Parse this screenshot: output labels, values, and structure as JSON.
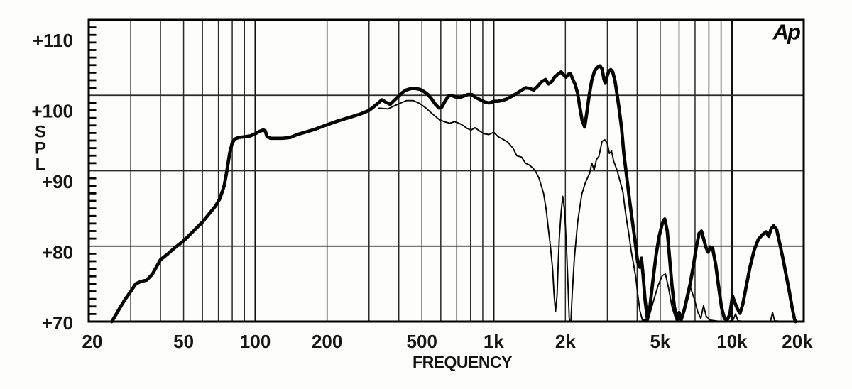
{
  "chart": {
    "logo_text": "Ap",
    "x_axis_title": "FREQUENCY",
    "y_axis_title_letters": [
      "S",
      "P",
      "L"
    ],
    "colors": {
      "background": "#fdfdfc",
      "border": "#000000",
      "grid_minor": "#2a2a2a",
      "grid_major": "#111111",
      "curve": "#050505",
      "text": "#161616"
    }
  },
  "chart_data": {
    "type": "line",
    "title": "",
    "xlabel": "FREQUENCY",
    "ylabel": "SPL",
    "x_scale": "log",
    "xlim": [
      20,
      20000
    ],
    "ylim": [
      70,
      110
    ],
    "grid": true,
    "x_ticks": [
      {
        "label": "20",
        "value": 20
      },
      {
        "label": "50",
        "value": 50
      },
      {
        "label": "100",
        "value": 100
      },
      {
        "label": "200",
        "value": 200
      },
      {
        "label": "500",
        "value": 500
      },
      {
        "label": "1k",
        "value": 1000
      },
      {
        "label": "2k",
        "value": 2000
      },
      {
        "label": "5k",
        "value": 5000
      },
      {
        "label": "10k",
        "value": 10000
      },
      {
        "label": "20k",
        "value": 20000
      }
    ],
    "y_ticks": [
      {
        "label": "+110",
        "value": 110
      },
      {
        "label": "+100",
        "value": 100
      },
      {
        "label": "+90",
        "value": 90
      },
      {
        "label": "+80",
        "value": 80
      },
      {
        "label": "+70",
        "value": 70
      }
    ],
    "y_minor_tick_step_db": 1,
    "x_gridlines_hz": [
      30,
      40,
      50,
      60,
      70,
      80,
      90,
      100,
      200,
      300,
      400,
      500,
      600,
      700,
      800,
      900,
      1000,
      2000,
      3000,
      4000,
      5000,
      6000,
      7000,
      8000,
      9000,
      10000
    ],
    "x_major_gridlines_hz": [
      100,
      1000,
      10000
    ],
    "y_gridlines_db": [
      100,
      90,
      80
    ],
    "series": [
      {
        "name": "thick-response-curve",
        "stroke_width": 4.7,
        "points": [
          [
            25,
            70
          ],
          [
            26,
            70.9
          ],
          [
            27,
            71.8
          ],
          [
            28.5,
            73
          ],
          [
            30,
            74
          ],
          [
            31.5,
            75
          ],
          [
            33,
            75.3
          ],
          [
            35,
            75.5
          ],
          [
            37,
            76.3
          ],
          [
            40,
            78.2
          ],
          [
            43,
            79
          ],
          [
            46,
            79.8
          ],
          [
            50,
            80.7
          ],
          [
            55,
            82
          ],
          [
            60,
            83.2
          ],
          [
            64,
            84.3
          ],
          [
            68,
            85.3
          ],
          [
            71,
            86.3
          ],
          [
            74,
            88
          ],
          [
            76,
            90
          ],
          [
            78,
            92.3
          ],
          [
            80,
            93.7
          ],
          [
            82,
            94.2
          ],
          [
            85,
            94.4
          ],
          [
            90,
            94.5
          ],
          [
            95,
            94.6
          ],
          [
            100,
            94.9
          ],
          [
            104,
            95.2
          ],
          [
            108,
            95.4
          ],
          [
            110,
            95.3
          ],
          [
            112,
            94.5
          ],
          [
            116,
            94.3
          ],
          [
            122,
            94.3
          ],
          [
            130,
            94.3
          ],
          [
            140,
            94.4
          ],
          [
            150,
            94.8
          ],
          [
            162,
            95.1
          ],
          [
            178,
            95.5
          ],
          [
            200,
            96.1
          ],
          [
            222,
            96.6
          ],
          [
            250,
            97.1
          ],
          [
            275,
            97.5
          ],
          [
            300,
            98
          ],
          [
            320,
            98.7
          ],
          [
            340,
            99.4
          ],
          [
            352,
            99.1
          ],
          [
            368,
            98.8
          ],
          [
            385,
            99.4
          ],
          [
            400,
            99.9
          ],
          [
            415,
            100.4
          ],
          [
            430,
            100.7
          ],
          [
            450,
            100.9
          ],
          [
            470,
            100.9
          ],
          [
            490,
            100.8
          ],
          [
            510,
            100.5
          ],
          [
            530,
            100.1
          ],
          [
            550,
            99.5
          ],
          [
            570,
            98.8
          ],
          [
            590,
            98.3
          ],
          [
            605,
            98.4
          ],
          [
            625,
            99.2
          ],
          [
            645,
            99.9
          ],
          [
            665,
            100
          ],
          [
            690,
            99.8
          ],
          [
            720,
            99.7
          ],
          [
            750,
            99.9
          ],
          [
            780,
            100.1
          ],
          [
            810,
            100.1
          ],
          [
            840,
            99.7
          ],
          [
            880,
            99.4
          ],
          [
            920,
            99.1
          ],
          [
            960,
            99
          ],
          [
            1000,
            99.2
          ],
          [
            1040,
            99.2
          ],
          [
            1080,
            99.3
          ],
          [
            1130,
            99.5
          ],
          [
            1180,
            99.8
          ],
          [
            1240,
            100.2
          ],
          [
            1300,
            100.6
          ],
          [
            1360,
            101
          ],
          [
            1420,
            100.9
          ],
          [
            1470,
            100.7
          ],
          [
            1520,
            101.1
          ],
          [
            1590,
            101.8
          ],
          [
            1650,
            102.1
          ],
          [
            1700,
            101.5
          ],
          [
            1750,
            101.8
          ],
          [
            1800,
            102.4
          ],
          [
            1860,
            102.8
          ],
          [
            1920,
            103.1
          ],
          [
            1970,
            102.7
          ],
          [
            2010,
            102.4
          ],
          [
            2060,
            102.8
          ],
          [
            2100,
            102.9
          ],
          [
            2150,
            102.1
          ],
          [
            2200,
            101.4
          ],
          [
            2250,
            100.3
          ],
          [
            2300,
            98.4
          ],
          [
            2350,
            96.7
          ],
          [
            2410,
            95.8
          ],
          [
            2460,
            97.7
          ],
          [
            2520,
            100.1
          ],
          [
            2580,
            102
          ],
          [
            2650,
            103.2
          ],
          [
            2720,
            103.7
          ],
          [
            2790,
            103.9
          ],
          [
            2850,
            103.5
          ],
          [
            2900,
            102.2
          ],
          [
            2940,
            101.6
          ],
          [
            2990,
            102.5
          ],
          [
            3040,
            103.2
          ],
          [
            3100,
            103.4
          ],
          [
            3160,
            103.1
          ],
          [
            3230,
            101.9
          ],
          [
            3300,
            100
          ],
          [
            3360,
            98.2
          ],
          [
            3440,
            95.7
          ],
          [
            3520,
            92.2
          ],
          [
            3620,
            89.1
          ],
          [
            3720,
            86
          ],
          [
            3820,
            83.3
          ],
          [
            3920,
            80.7
          ],
          [
            4020,
            77.9
          ],
          [
            4100,
            77.2
          ],
          [
            4170,
            78.4
          ],
          [
            4240,
            76
          ],
          [
            4320,
            72.8
          ],
          [
            4420,
            70.3
          ],
          [
            4520,
            71.8
          ],
          [
            4650,
            75.2
          ],
          [
            4800,
            78.8
          ],
          [
            4950,
            81.3
          ],
          [
            5100,
            83
          ],
          [
            5220,
            83.6
          ],
          [
            5350,
            82
          ],
          [
            5480,
            78.2
          ],
          [
            5600,
            74.8
          ],
          [
            5730,
            72
          ],
          [
            5880,
            70.3
          ],
          [
            6000,
            71.2
          ],
          [
            6130,
            70.3
          ],
          [
            6300,
            71.5
          ],
          [
            6480,
            73.2
          ],
          [
            6680,
            75
          ],
          [
            6880,
            77.3
          ],
          [
            7080,
            79.8
          ],
          [
            7280,
            81.7
          ],
          [
            7450,
            82
          ],
          [
            7600,
            81
          ],
          [
            7780,
            79.8
          ],
          [
            7950,
            79.2
          ],
          [
            8100,
            79.9
          ],
          [
            8300,
            79.7
          ],
          [
            8550,
            77.5
          ],
          [
            8800,
            74.5
          ],
          [
            9050,
            71.8
          ],
          [
            9300,
            70.4
          ],
          [
            9550,
            70.2
          ],
          [
            9800,
            71
          ],
          [
            10050,
            73.4
          ],
          [
            10250,
            72.6
          ],
          [
            10500,
            71.8
          ],
          [
            10800,
            71.1
          ],
          [
            11100,
            72.3
          ],
          [
            11500,
            74.8
          ],
          [
            11900,
            77.2
          ],
          [
            12400,
            79.5
          ],
          [
            12900,
            80.9
          ],
          [
            13400,
            81.5
          ],
          [
            13900,
            81.9
          ],
          [
            14250,
            81.3
          ],
          [
            14600,
            82.3
          ],
          [
            14950,
            82.7
          ],
          [
            15400,
            82.2
          ],
          [
            15900,
            80.2
          ],
          [
            16400,
            78.2
          ],
          [
            16900,
            76.1
          ],
          [
            17400,
            74
          ],
          [
            17900,
            71.8
          ],
          [
            18300,
            70.3
          ],
          [
            18500,
            70
          ]
        ]
      },
      {
        "name": "thin-response-curve",
        "stroke_width": 1.9,
        "points": [
          [
            330,
            98.3
          ],
          [
            360,
            98.2
          ],
          [
            395,
            98.8
          ],
          [
            430,
            99.3
          ],
          [
            460,
            99.3
          ],
          [
            490,
            98.9
          ],
          [
            520,
            98.3
          ],
          [
            555,
            97.5
          ],
          [
            590,
            96.8
          ],
          [
            620,
            96.5
          ],
          [
            655,
            96.3
          ],
          [
            685,
            96.5
          ],
          [
            715,
            96.3
          ],
          [
            745,
            96
          ],
          [
            775,
            95.6
          ],
          [
            805,
            95.4
          ],
          [
            835,
            95.7
          ],
          [
            870,
            95.3
          ],
          [
            910,
            94.9
          ],
          [
            955,
            94.8
          ],
          [
            1000,
            95.1
          ],
          [
            1045,
            94.5
          ],
          [
            1090,
            94.2
          ],
          [
            1145,
            93.8
          ],
          [
            1205,
            93
          ],
          [
            1250,
            92
          ],
          [
            1310,
            91.8
          ],
          [
            1360,
            91
          ],
          [
            1405,
            90.8
          ],
          [
            1455,
            90.4
          ],
          [
            1495,
            90
          ],
          [
            1550,
            89
          ],
          [
            1620,
            87
          ],
          [
            1660,
            84.9
          ],
          [
            1695,
            82.4
          ],
          [
            1730,
            80
          ],
          [
            1768,
            76.9
          ],
          [
            1792,
            73.7
          ],
          [
            1818,
            71.3
          ],
          [
            1845,
            73.5
          ],
          [
            1862,
            76.9
          ],
          [
            1885,
            81
          ],
          [
            1920,
            84.6
          ],
          [
            1950,
            86.6
          ],
          [
            1985,
            84.7
          ],
          [
            2020,
            80
          ],
          [
            2048,
            75.4
          ],
          [
            2075,
            70.5
          ],
          [
            2085,
            70
          ],
          [
            2110,
            70
          ],
          [
            2135,
            73.6
          ],
          [
            2180,
            78.3
          ],
          [
            2250,
            83.1
          ],
          [
            2295,
            85
          ],
          [
            2345,
            86.9
          ],
          [
            2425,
            88.4
          ],
          [
            2530,
            89.7
          ],
          [
            2580,
            91
          ],
          [
            2640,
            90.1
          ],
          [
            2700,
            91.5
          ],
          [
            2765,
            91.9
          ],
          [
            2850,
            93.9
          ],
          [
            2925,
            94.1
          ],
          [
            3000,
            93.6
          ],
          [
            3060,
            92.3
          ],
          [
            3125,
            92.6
          ],
          [
            3185,
            91.3
          ],
          [
            3300,
            90
          ],
          [
            3405,
            88.4
          ],
          [
            3485,
            87.2
          ],
          [
            3555,
            85
          ],
          [
            3625,
            83.2
          ],
          [
            3705,
            81.3
          ],
          [
            3775,
            79.4
          ],
          [
            3855,
            77.8
          ],
          [
            3945,
            75.9
          ],
          [
            4030,
            73.4
          ],
          [
            4110,
            71.4
          ],
          [
            4210,
            70.2
          ],
          [
            4360,
            70.2
          ],
          [
            4520,
            71
          ],
          [
            4700,
            72.9
          ],
          [
            4900,
            74.8
          ],
          [
            5100,
            76.1
          ],
          [
            5260,
            76.3
          ],
          [
            5420,
            74.4
          ],
          [
            5600,
            72
          ],
          [
            5800,
            70.4
          ],
          [
            6000,
            70.2
          ],
          [
            6220,
            70.9
          ],
          [
            6460,
            72.4
          ],
          [
            6700,
            74.5
          ],
          [
            6950,
            73
          ],
          [
            7180,
            71.3
          ],
          [
            7400,
            70.4
          ],
          [
            7600,
            72.1
          ],
          [
            7800,
            70.7
          ],
          [
            8100,
            70.2
          ],
          [
            8500,
            70.1
          ],
          [
            9000,
            70
          ],
          [
            9600,
            70
          ],
          [
            10100,
            70.2
          ],
          [
            10350,
            71
          ],
          [
            10600,
            70.1
          ],
          [
            11500,
            70
          ],
          [
            13000,
            70
          ],
          [
            14500,
            70
          ],
          [
            14800,
            71.2
          ],
          [
            15100,
            70.1
          ],
          [
            16500,
            70
          ],
          [
            18000,
            70
          ]
        ]
      }
    ]
  }
}
